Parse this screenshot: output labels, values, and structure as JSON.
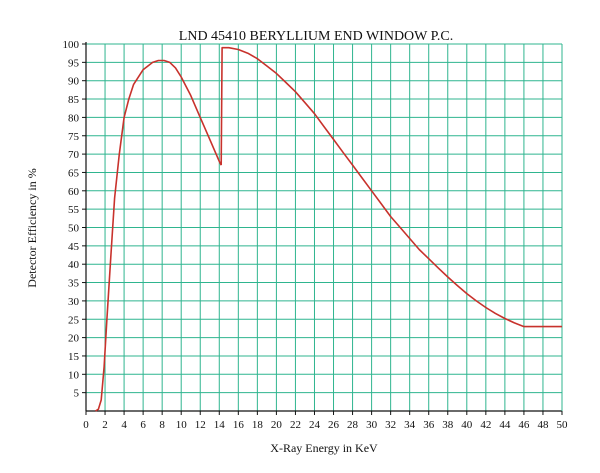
{
  "chart_data": {
    "type": "line",
    "title": "LND 45410 BERYLLIUM END WINDOW P.C.",
    "xlabel": "X-Ray Energy in KeV",
    "ylabel": "Detector Efficiency in %",
    "xlim": [
      0,
      50
    ],
    "ylim": [
      0,
      100
    ],
    "x_ticks": [
      0,
      2,
      4,
      6,
      8,
      10,
      12,
      14,
      16,
      18,
      20,
      22,
      24,
      26,
      28,
      30,
      32,
      34,
      36,
      38,
      40,
      42,
      44,
      46,
      48,
      50
    ],
    "y_ticks": [
      5,
      10,
      15,
      20,
      25,
      30,
      35,
      40,
      45,
      50,
      55,
      60,
      65,
      70,
      75,
      80,
      85,
      90,
      95,
      100
    ],
    "grid": true,
    "grid_color": "#2fb58f",
    "series": [
      {
        "color": "#c8322c",
        "segments": [
          {
            "x": [
              1.0,
              1.3,
              1.6,
              1.9,
              2.2,
              2.6,
              3.0,
              3.5,
              4.0,
              4.5,
              5.0,
              6.0,
              7.0,
              7.6,
              8.2,
              8.8,
              9.4,
              10.0,
              11.0,
              12.0,
              13.0,
              14.0,
              14.2
            ],
            "y": [
              0,
              0.5,
              3,
              12,
              25,
              42,
              58,
              70,
              80,
              85,
              89,
              93,
              95,
              95.5,
              95.5,
              95,
              93.5,
              91,
              86,
              80,
              74,
              68,
              67
            ]
          },
          {
            "x": [
              14.2,
              14.3,
              14.6,
              15,
              16,
              17,
              18,
              19,
              20,
              21,
              22,
              23,
              24,
              25,
              26,
              27,
              28,
              29,
              30,
              31,
              32,
              33,
              34,
              35,
              36,
              37,
              38,
              39,
              40,
              41,
              42,
              43,
              44,
              45,
              46,
              47,
              48,
              49,
              50
            ],
            "y": [
              67,
              99,
              99,
              99,
              98.5,
              97.5,
              96,
              94,
              92,
              89.5,
              87,
              84,
              81,
              77.5,
              74,
              70.5,
              67,
              63.5,
              60,
              56.5,
              53,
              50,
              47,
              44,
              41.5,
              39,
              36.5,
              34.2,
              32,
              30,
              28.2,
              26.6,
              25.2,
              24,
              23,
              23,
              23,
              23,
              23
            ]
          }
        ]
      }
    ]
  }
}
